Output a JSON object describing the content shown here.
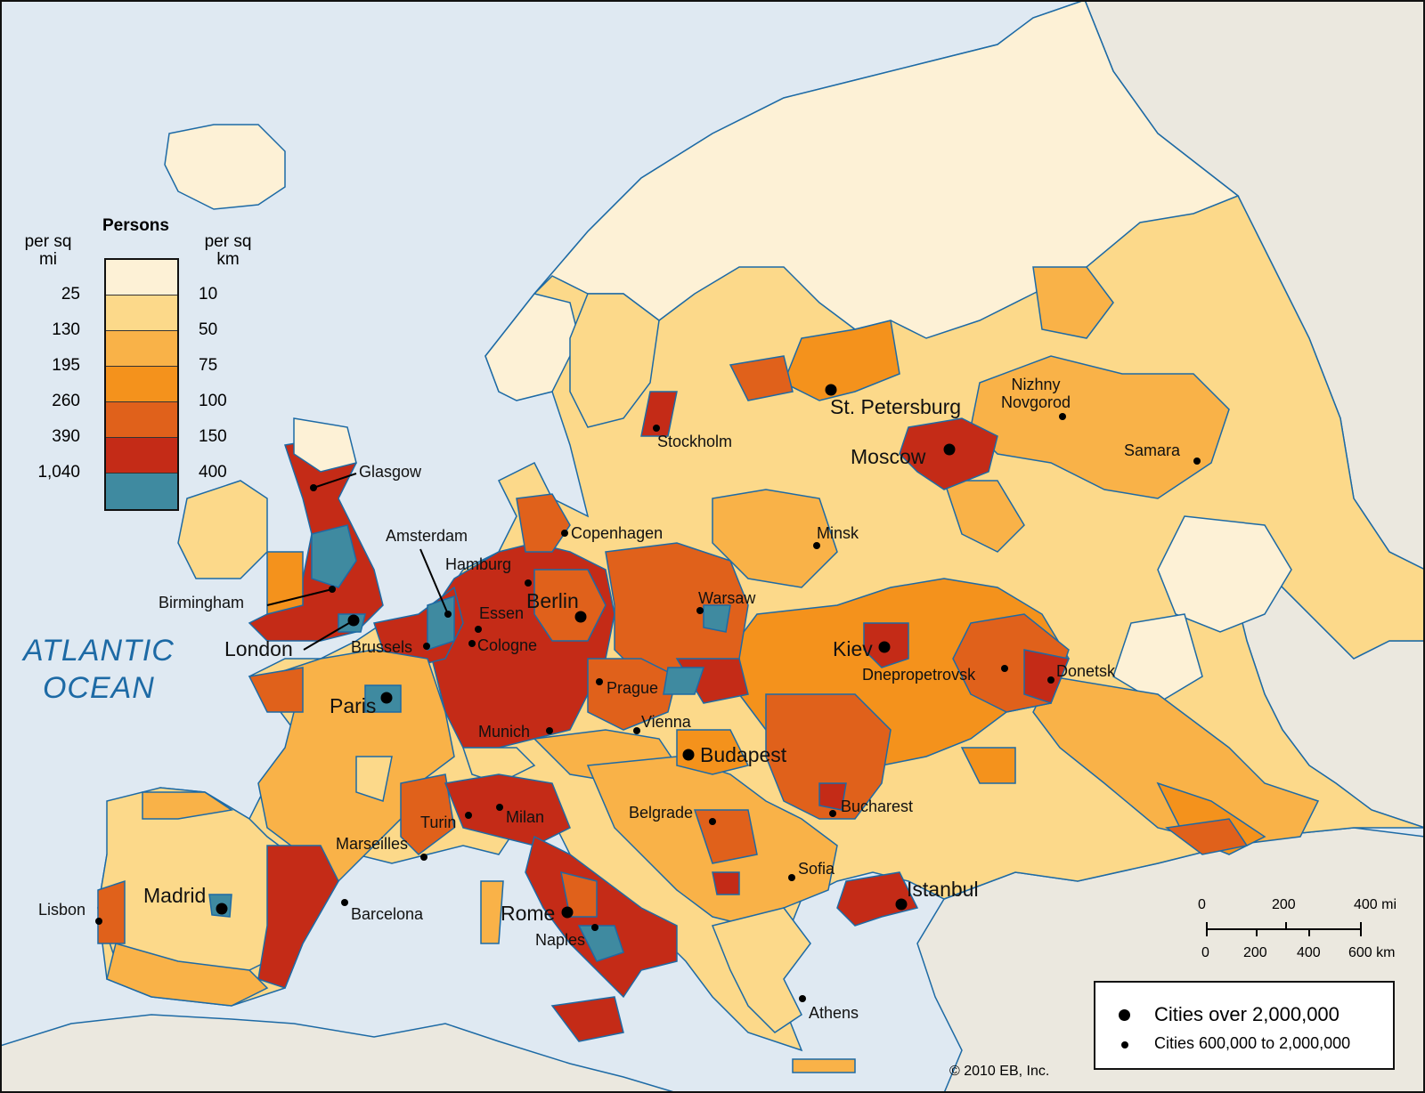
{
  "map": {
    "ocean_label": [
      "ATLANTIC",
      "OCEAN"
    ],
    "copyright": "© 2010 EB, Inc.",
    "colors": {
      "sea": "#dfe9f2",
      "coast": "#1d6aa5",
      "non_europe_land": "#ebe8df",
      "density_10": "#fdf1d6",
      "density_50": "#fcd98a",
      "density_75": "#f9b248",
      "density_100": "#f4921c",
      "density_150": "#e0611b",
      "density_400": "#c42b17",
      "density_over_400": "#3f8aa0",
      "city_dot": "#000000"
    }
  },
  "legend": {
    "title": "Persons",
    "left_unit": [
      "per sq",
      "mi"
    ],
    "right_unit": [
      "per sq",
      "km"
    ],
    "classes": [
      {
        "mi": "",
        "km": "",
        "color": "#fdf1d6"
      },
      {
        "mi": "25",
        "km": "10",
        "color": "#fcd98a"
      },
      {
        "mi": "130",
        "km": "50",
        "color": "#f9b248"
      },
      {
        "mi": "195",
        "km": "75",
        "color": "#f4921c"
      },
      {
        "mi": "260",
        "km": "100",
        "color": "#e0611b"
      },
      {
        "mi": "390",
        "km": "150",
        "color": "#c42b17"
      },
      {
        "mi": "1,040",
        "km": "400",
        "color": "#3f8aa0"
      }
    ]
  },
  "city_key": {
    "large": "Cities over 2,000,000",
    "medium": "Cities 600,000 to 2,000,000"
  },
  "scale_bar": {
    "mi_labels": [
      "0",
      "200",
      "400 mi"
    ],
    "km_labels": [
      "0",
      "200",
      "400",
      "600 km"
    ]
  },
  "cities": [
    {
      "name": "Glasgow",
      "size": "medium"
    },
    {
      "name": "Amsterdam",
      "size": "medium"
    },
    {
      "name": "Hamburg",
      "size": "medium"
    },
    {
      "name": "Birmingham",
      "size": "medium"
    },
    {
      "name": "London",
      "size": "large"
    },
    {
      "name": "Brussels",
      "size": "medium"
    },
    {
      "name": "Essen",
      "size": "medium"
    },
    {
      "name": "Cologne",
      "size": "medium"
    },
    {
      "name": "Berlin",
      "size": "large"
    },
    {
      "name": "Paris",
      "size": "large"
    },
    {
      "name": "Munich",
      "size": "medium"
    },
    {
      "name": "Prague",
      "size": "medium"
    },
    {
      "name": "Vienna",
      "size": "medium"
    },
    {
      "name": "Budapest",
      "size": "large"
    },
    {
      "name": "Warsaw",
      "size": "medium"
    },
    {
      "name": "Copenhagen",
      "size": "medium"
    },
    {
      "name": "Stockholm",
      "size": "medium"
    },
    {
      "name": "St. Petersburg",
      "size": "large"
    },
    {
      "name": "Moscow",
      "size": "large"
    },
    {
      "name": "Nizhny Novgorod",
      "size": "medium"
    },
    {
      "name": "Samara",
      "size": "medium"
    },
    {
      "name": "Minsk",
      "size": "medium"
    },
    {
      "name": "Kiev",
      "size": "large"
    },
    {
      "name": "Dnepropetrovsk",
      "size": "medium"
    },
    {
      "name": "Donetsk",
      "size": "medium"
    },
    {
      "name": "Bucharest",
      "size": "medium"
    },
    {
      "name": "Belgrade",
      "size": "medium"
    },
    {
      "name": "Sofia",
      "size": "medium"
    },
    {
      "name": "Istanbul",
      "size": "large"
    },
    {
      "name": "Athens",
      "size": "medium"
    },
    {
      "name": "Turin",
      "size": "medium"
    },
    {
      "name": "Milan",
      "size": "medium"
    },
    {
      "name": "Marseilles",
      "size": "medium"
    },
    {
      "name": "Barcelona",
      "size": "medium"
    },
    {
      "name": "Madrid",
      "size": "large"
    },
    {
      "name": "Lisbon",
      "size": "medium"
    },
    {
      "name": "Rome",
      "size": "large"
    },
    {
      "name": "Naples",
      "size": "medium"
    }
  ]
}
